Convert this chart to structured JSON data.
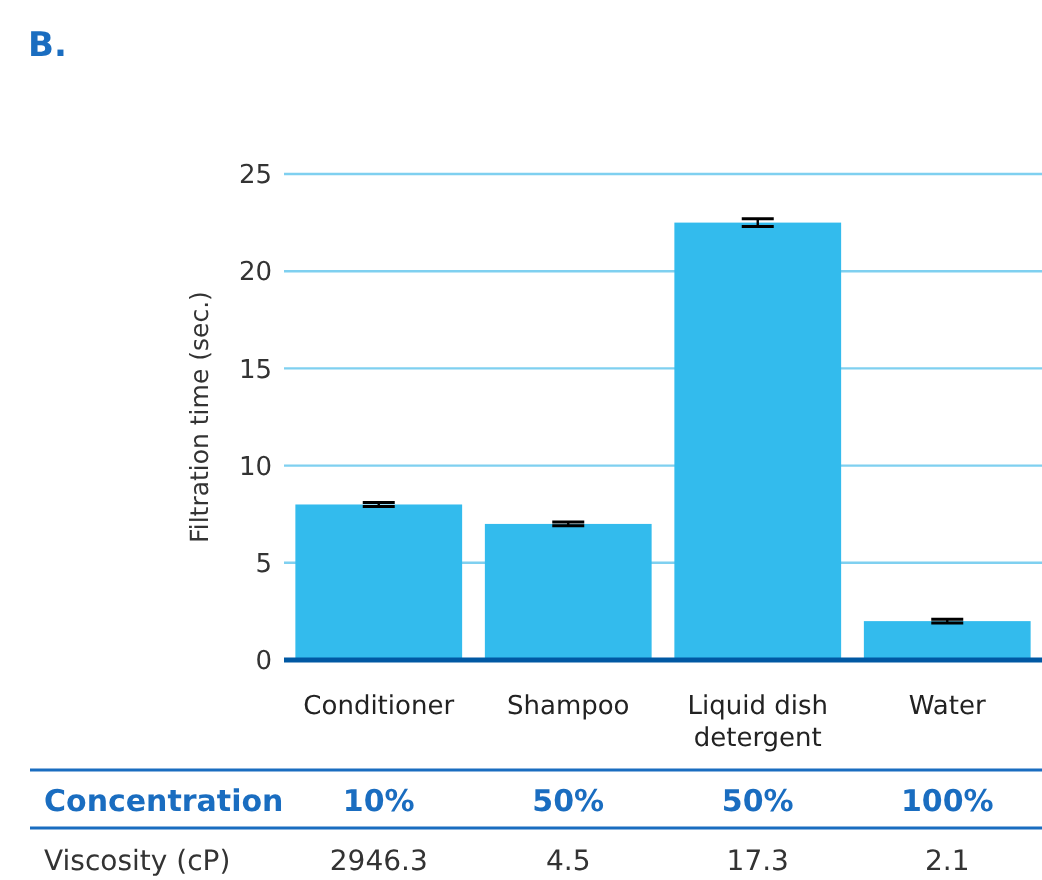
{
  "chart_data": {
    "type": "bar",
    "title": "B.",
    "ylabel": "Filtration time (sec.)",
    "categories": [
      "Conditioner",
      "Shampoo",
      "Liquid dish detergent",
      "Water"
    ],
    "values": [
      8.0,
      7.0,
      22.5,
      2.0
    ],
    "errors": [
      0.1,
      0.1,
      0.2,
      0.1
    ],
    "color": "#33bbed",
    "ylim": [
      0,
      25
    ],
    "yticks": [
      0,
      5,
      10,
      15,
      20,
      25
    ],
    "grid": "y",
    "annotations": [
      "Concentration",
      "10%",
      "50%",
      "50%",
      "100%",
      "Viscosity (cP)",
      "2946.3",
      "4.5",
      "17.3",
      "2.1"
    ]
  }
}
